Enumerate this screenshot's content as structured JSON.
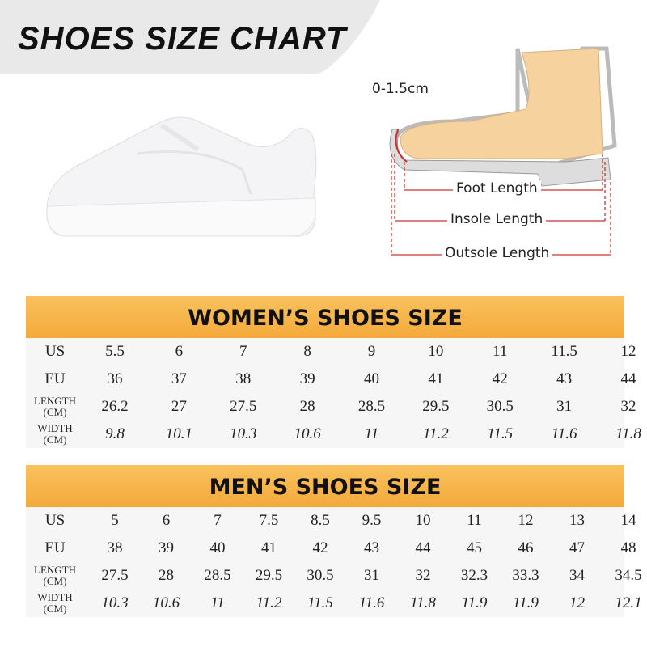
{
  "header": {
    "title": "SHOES SIZE CHART"
  },
  "diagram": {
    "gap": "0-1.5cm",
    "foot_length": "Foot Length",
    "insole_length": "Insole Length",
    "outsole_length": "Outsole Length"
  },
  "tables": [
    {
      "title": "WOMEN’S SHOES SIZE",
      "rows": [
        {
          "label": [
            "US"
          ],
          "values": [
            "5.5",
            "6",
            "7",
            "8",
            "9",
            "10",
            "11",
            "11.5",
            "12"
          ]
        },
        {
          "label": [
            "EU"
          ],
          "values": [
            "36",
            "37",
            "38",
            "39",
            "40",
            "41",
            "42",
            "43",
            "44"
          ]
        },
        {
          "label": [
            "LENGTH",
            "(CM)"
          ],
          "values": [
            "26.2",
            "27",
            "27.5",
            "28",
            "28.5",
            "29.5",
            "30.5",
            "31",
            "32"
          ]
        },
        {
          "label": [
            "WIDTH",
            "(CM)"
          ],
          "values": [
            "9.8",
            "10.1",
            "10.3",
            "10.6",
            "11",
            "11.2",
            "11.5",
            "11.6",
            "11.8"
          ]
        }
      ]
    },
    {
      "title": "MEN’S SHOES SIZE",
      "rows": [
        {
          "label": [
            "US"
          ],
          "values": [
            "5",
            "6",
            "7",
            "7.5",
            "8.5",
            "9.5",
            "10",
            "11",
            "12",
            "13",
            "14"
          ]
        },
        {
          "label": [
            "EU"
          ],
          "values": [
            "38",
            "39",
            "40",
            "41",
            "42",
            "43",
            "44",
            "45",
            "46",
            "47",
            "48"
          ]
        },
        {
          "label": [
            "LENGTH",
            "(CM)"
          ],
          "values": [
            "27.5",
            "28",
            "28.5",
            "29.5",
            "30.5",
            "31",
            "32",
            "32.3",
            "33.3",
            "34",
            "34.5"
          ]
        },
        {
          "label": [
            "WIDTH",
            "(CM)"
          ],
          "values": [
            "10.3",
            "10.6",
            "11",
            "11.2",
            "11.5",
            "11.6",
            "11.8",
            "11.9",
            "11.9",
            "12",
            "12.1"
          ]
        }
      ]
    }
  ]
}
